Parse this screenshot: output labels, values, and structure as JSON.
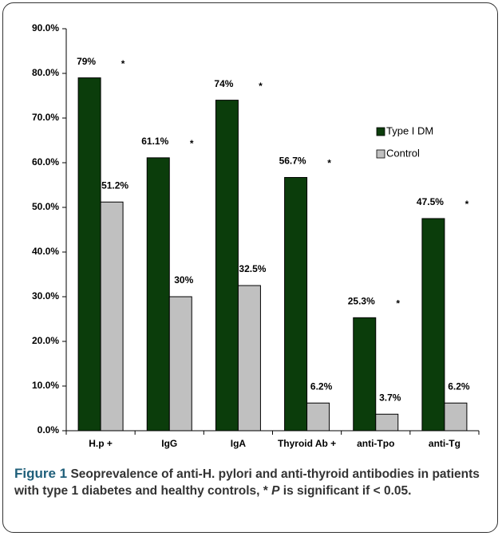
{
  "chart_data": {
    "type": "bar",
    "categories": [
      "H.p +",
      "IgG",
      "IgA",
      "Thyroid Ab +",
      "anti-Tpo",
      "anti-Tg"
    ],
    "series": [
      {
        "name": "Type I DM",
        "color": "#0b3d0b",
        "values": [
          79,
          61.1,
          74,
          56.7,
          25.3,
          47.5
        ],
        "value_labels": [
          "79%",
          "61.1%",
          "74%",
          "56.7%",
          "25.3%",
          "47.5%"
        ],
        "annotations": [
          "*",
          "*",
          "*",
          "*",
          "*",
          "*"
        ]
      },
      {
        "name": "Control",
        "color": "#c0c0c0",
        "values": [
          51.2,
          30,
          32.5,
          6.2,
          3.7,
          6.2
        ],
        "value_labels": [
          "51.2%",
          "30%",
          "32.5%",
          "6.2%",
          "3.7%",
          "6.2%"
        ]
      }
    ],
    "ylim": [
      0,
      90
    ],
    "yticks": [
      {
        "value": 0,
        "label": "0.0%"
      },
      {
        "value": 10,
        "label": "10.0%"
      },
      {
        "value": 20,
        "label": "20.0%"
      },
      {
        "value": 30,
        "label": "30.0%"
      },
      {
        "value": 40,
        "label": "40.0%"
      },
      {
        "value": 50,
        "label": "50.0%"
      },
      {
        "value": 60,
        "label": "60.0%"
      },
      {
        "value": 70,
        "label": "70.0%"
      },
      {
        "value": 80,
        "label": "80.0%"
      },
      {
        "value": 90,
        "label": "90.0%"
      }
    ],
    "grid": false,
    "legend": "right"
  },
  "caption": {
    "label": "Figure 1",
    "text": "Seoprevalence of anti-H. pylori and anti-thyroid antibodies in patients with type 1 diabetes and healthy controls, *",
    "italic": "P",
    "text_after": "is significant if < 0.05."
  }
}
